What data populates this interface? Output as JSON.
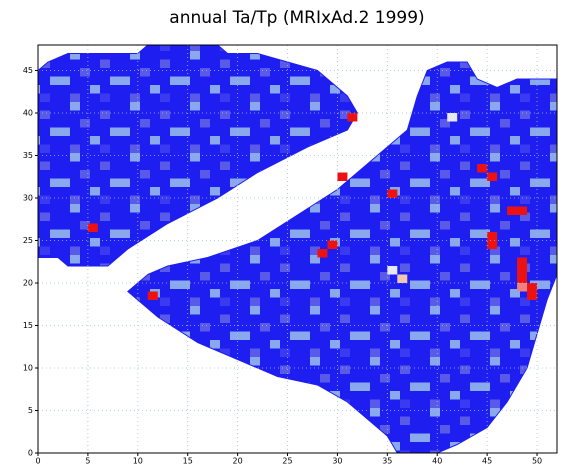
{
  "chart_data": {
    "type": "grid-map",
    "title": "annual Ta/Tp (MRIxAd.2 1999)",
    "xlim": [
      0,
      52
    ],
    "ylim": [
      0,
      48
    ],
    "xticks": [
      0,
      5,
      10,
      15,
      20,
      25,
      30,
      35,
      40,
      45,
      50
    ],
    "yticks": [
      0,
      5,
      10,
      15,
      20,
      25,
      30,
      35,
      40,
      45
    ],
    "grid": true,
    "regions": [
      {
        "color": "#1e1ef0",
        "points": [
          [
            0,
            45
          ],
          [
            1,
            46
          ],
          [
            3,
            47
          ],
          [
            10,
            47
          ],
          [
            11,
            48
          ],
          [
            18,
            48
          ],
          [
            19,
            47
          ],
          [
            22,
            47
          ],
          [
            25,
            46
          ],
          [
            28,
            45
          ],
          [
            31,
            42
          ],
          [
            32,
            40
          ],
          [
            31,
            38
          ],
          [
            27,
            36
          ],
          [
            22,
            33
          ],
          [
            18,
            30
          ],
          [
            13,
            27
          ],
          [
            9,
            24
          ],
          [
            7,
            22
          ],
          [
            3,
            22
          ],
          [
            2,
            23
          ],
          [
            0,
            23
          ]
        ]
      },
      {
        "color": "#1e1ef0",
        "points": [
          [
            11,
            21
          ],
          [
            13,
            22
          ],
          [
            17,
            23
          ],
          [
            22,
            25
          ],
          [
            26,
            28
          ],
          [
            30,
            31
          ],
          [
            34,
            35
          ],
          [
            37,
            38
          ],
          [
            38,
            42
          ],
          [
            39,
            45
          ],
          [
            41,
            46
          ],
          [
            43,
            46
          ],
          [
            44,
            44
          ],
          [
            46,
            43
          ],
          [
            48,
            44
          ],
          [
            52,
            44
          ],
          [
            52,
            21
          ],
          [
            51,
            18
          ],
          [
            50,
            14
          ],
          [
            49,
            10
          ],
          [
            47,
            6
          ],
          [
            45,
            3
          ],
          [
            42,
            1
          ],
          [
            40,
            0
          ],
          [
            36,
            0
          ],
          [
            35,
            2
          ],
          [
            33,
            4
          ],
          [
            31,
            6
          ],
          [
            28,
            8
          ],
          [
            24,
            9
          ],
          [
            20,
            11
          ],
          [
            16,
            13
          ],
          [
            12,
            16
          ],
          [
            10,
            18
          ],
          [
            9,
            19
          ],
          [
            10,
            20
          ]
        ]
      }
    ],
    "cells": [
      {
        "x": 5,
        "y": 26,
        "color": "#ee1111"
      },
      {
        "x": 31,
        "y": 39,
        "color": "#ee1111"
      },
      {
        "x": 30,
        "y": 32,
        "color": "#ee1111"
      },
      {
        "x": 35,
        "y": 30,
        "color": "#ee1111"
      },
      {
        "x": 44,
        "y": 33,
        "color": "#ee1111"
      },
      {
        "x": 45,
        "y": 32,
        "color": "#ee1111"
      },
      {
        "x": 47,
        "y": 28,
        "color": "#ee1111"
      },
      {
        "x": 48,
        "y": 28,
        "color": "#ee1111"
      },
      {
        "x": 45,
        "y": 25,
        "color": "#ee1111"
      },
      {
        "x": 45,
        "y": 24,
        "color": "#ee1111"
      },
      {
        "x": 48,
        "y": 22,
        "color": "#ee1111"
      },
      {
        "x": 48,
        "y": 21,
        "color": "#ee1111"
      },
      {
        "x": 48,
        "y": 20,
        "color": "#ee1111"
      },
      {
        "x": 49,
        "y": 19,
        "color": "#ee1111"
      },
      {
        "x": 49,
        "y": 18,
        "color": "#ee1111"
      },
      {
        "x": 29,
        "y": 24,
        "color": "#ee1111"
      },
      {
        "x": 28,
        "y": 23,
        "color": "#ee1111"
      },
      {
        "x": 11,
        "y": 18,
        "color": "#ee1111"
      },
      {
        "x": 48,
        "y": 19,
        "color": "#f08080"
      },
      {
        "x": 41,
        "y": 39,
        "color": "#e8e8f4"
      },
      {
        "x": 36,
        "y": 20,
        "color": "#f0c8b0"
      },
      {
        "x": 35,
        "y": 21,
        "color": "#e8e8f4"
      }
    ]
  }
}
